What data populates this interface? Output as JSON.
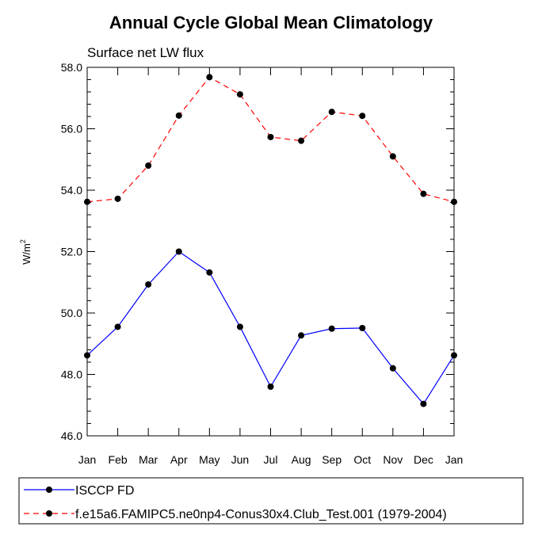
{
  "chart_data": {
    "type": "line",
    "title": "Annual Cycle Global Mean Climatology",
    "subtitle": "Surface net LW flux",
    "xlabel": "",
    "ylabel": "W/m",
    "ylabel_superscript": "2",
    "categories": [
      "Jan",
      "Feb",
      "Mar",
      "Apr",
      "May",
      "Jun",
      "Jul",
      "Aug",
      "Sep",
      "Oct",
      "Nov",
      "Dec",
      "Jan"
    ],
    "ylim": [
      46.0,
      58.0
    ],
    "yticks": [
      "46.0",
      "48.0",
      "50.0",
      "52.0",
      "54.0",
      "56.0",
      "58.0"
    ],
    "grid": false,
    "legend_position": "bottom",
    "series": [
      {
        "name": "ISCCP FD",
        "color": "#0000ff",
        "dashed": false,
        "values": [
          48.62,
          49.55,
          50.93,
          52.0,
          51.32,
          49.55,
          47.6,
          49.27,
          49.49,
          49.51,
          48.2,
          47.04,
          48.62
        ]
      },
      {
        "name": "f.e15a6.FAMIPC5.ne0np4-Conus30x4.Club_Test.001 (1979-2004)",
        "color": "#ff0000",
        "dashed": true,
        "values": [
          53.62,
          53.72,
          54.8,
          56.43,
          57.68,
          57.12,
          55.73,
          55.61,
          56.55,
          56.42,
          55.1,
          53.88,
          53.62
        ]
      }
    ]
  }
}
